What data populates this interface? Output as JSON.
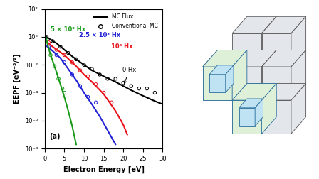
{
  "chart_data": {
    "type": "line",
    "log": "y",
    "x_label": "Electron Energy [eV]",
    "y_label": "EEPF [eV⁻³/²]",
    "panel_label": "(a)",
    "xlim": [
      0,
      30
    ],
    "xticks": [
      0,
      5,
      10,
      15,
      20,
      25,
      30
    ],
    "ylim": [
      1e-08,
      100
    ],
    "yticks": [
      {
        "value": 1e-08,
        "label": "10⁻⁸"
      },
      {
        "value": 1e-06,
        "label": "10⁻⁶"
      },
      {
        "value": 0.0001,
        "label": "10⁻⁴"
      },
      {
        "value": 0.01,
        "label": "10⁻²"
      },
      {
        "value": 1,
        "label": "10⁰"
      },
      {
        "value": 100,
        "label": "10²"
      }
    ],
    "legend": "upper right",
    "legend_entries": [
      {
        "name": "MC Flux",
        "type": "line",
        "line_style": "solid",
        "marker": "none"
      },
      {
        "name": "Conventional MC",
        "type": "scatter",
        "line_style": "none",
        "marker": "circle"
      }
    ],
    "series": [
      {
        "name": "0 Hx",
        "color": "#000000",
        "mc_flux": {
          "x": [
            0,
            1,
            2,
            3,
            5,
            7,
            10,
            12,
            15,
            18,
            20,
            22,
            25,
            28,
            30
          ],
          "values": [
            1.2,
            0.8,
            0.5,
            0.35,
            0.12,
            0.04,
            0.01,
            0.004,
            0.0015,
            0.0006,
            0.0003,
            0.00015,
            6e-05,
            2.5e-05,
            1.5e-05
          ]
        },
        "conventional_mc": {
          "x": [
            0.5,
            2,
            4,
            6,
            8,
            10,
            12,
            14,
            16,
            18,
            20,
            22,
            24,
            26,
            28
          ],
          "values": [
            1,
            0.5,
            0.2,
            0.07,
            0.025,
            0.01,
            0.005,
            0.002,
            0.001,
            0.001,
            0.0005,
            0.0003,
            0.0002,
            0.0002,
            0.0001
          ]
        }
      },
      {
        "name": "10³ Hx",
        "color": "#e8101a",
        "mc_flux": {
          "x": [
            0,
            2,
            5,
            8,
            10,
            12,
            15,
            18,
            20,
            21
          ],
          "values": [
            0.6,
            0.2,
            0.05,
            0.008,
            0.002,
            0.0006,
            8e-05,
            5e-06,
            5e-07,
            1e-07
          ]
        },
        "conventional_mc": {
          "x": [
            1,
            3,
            5,
            7,
            9,
            11,
            13,
            15,
            17
          ],
          "values": [
            0.4,
            0.12,
            0.05,
            0.015,
            0.004,
            0.0015,
            0.0004,
            0.0001,
            2e-05
          ]
        }
      },
      {
        "name": "2.5 × 10³ Hx",
        "color": "#1f1fd6",
        "mc_flux": {
          "x": [
            0,
            2,
            4,
            6,
            8,
            10,
            12,
            14,
            16,
            18
          ],
          "values": [
            0.3,
            0.1,
            0.03,
            0.005,
            0.0008,
            0.0001,
            1.5e-05,
            2e-06,
            2e-07,
            2e-08
          ]
        },
        "conventional_mc": {
          "x": [
            1,
            3,
            5,
            7,
            9,
            11,
            13
          ],
          "values": [
            0.2,
            0.05,
            0.015,
            0.002,
            0.0003,
            5e-05,
            2e-05
          ]
        }
      },
      {
        "name": "5 × 10³ Hx",
        "color": "#1a9a1a",
        "mc_flux": {
          "x": [
            0,
            1,
            2,
            3,
            4,
            5,
            6,
            7,
            8
          ],
          "values": [
            2,
            0.15,
            0.02,
            0.003,
            0.0004,
            5e-05,
            5e-06,
            4e-07,
            2e-08
          ]
        },
        "conventional_mc": {
          "x": [
            0.5,
            1.5,
            2.5,
            3.5,
            4.5,
            5
          ],
          "values": [
            0.6,
            0.05,
            0.008,
            0.001,
            0.0002,
            0.0001
          ]
        }
      }
    ]
  }
}
